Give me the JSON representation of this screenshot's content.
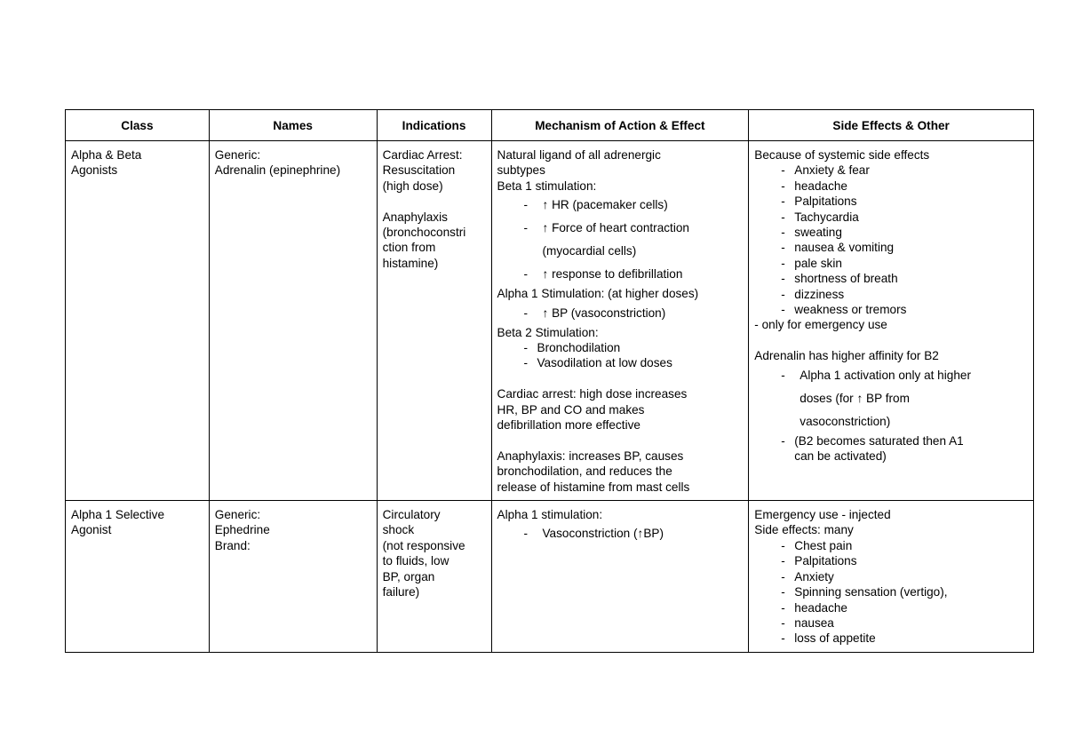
{
  "headers": [
    "Class",
    "Names",
    "Indications",
    "Mechanism of Action & Effect",
    "Side Effects & Other"
  ],
  "rows": [
    [
      [
        {
          "k": "t",
          "v": "Alpha & Beta"
        },
        {
          "k": "t",
          "v": "Agonists"
        }
      ],
      [
        {
          "k": "t",
          "v": "Generic:"
        },
        {
          "k": "t",
          "v": "Adrenalin (epinephrine)"
        }
      ],
      [
        {
          "k": "t",
          "v": "Cardiac Arrest:"
        },
        {
          "k": "t",
          "v": "Resuscitation"
        },
        {
          "k": "t",
          "v": "(high dose)"
        },
        {
          "k": "blank",
          "v": ""
        },
        {
          "k": "t",
          "v": "Anaphylaxis"
        },
        {
          "k": "t",
          "v": "(bronchoconstri"
        },
        {
          "k": "t",
          "v": "ction from"
        },
        {
          "k": "t",
          "v": "histamine)"
        }
      ],
      [
        {
          "k": "t",
          "v": "Natural ligand of all adrenergic"
        },
        {
          "k": "t",
          "v": "subtypes"
        },
        {
          "k": "t",
          "v": "Beta 1 stimulation:"
        },
        {
          "k": "bw",
          "v": "↑ HR (pacemaker cells)"
        },
        {
          "k": "bw",
          "v": "↑ Force of heart contraction"
        },
        {
          "k": "cw",
          "v": "(myocardial cells)"
        },
        {
          "k": "bw",
          "v": "↑ response to defibrillation"
        },
        {
          "k": "t",
          "v": "Alpha 1 Stimulation: (at higher doses)"
        },
        {
          "k": "bw",
          "v": "↑ BP (vasoconstriction)"
        },
        {
          "k": "t",
          "v": "Beta 2 Stimulation:"
        },
        {
          "k": "b",
          "v": "Bronchodilation"
        },
        {
          "k": "b",
          "v": "Vasodilation at low doses"
        },
        {
          "k": "blank",
          "v": ""
        },
        {
          "k": "t",
          "v": "Cardiac arrest: high dose increases"
        },
        {
          "k": "t",
          "v": "HR, BP and CO and makes"
        },
        {
          "k": "t",
          "v": "defibrillation more effective"
        },
        {
          "k": "blank",
          "v": ""
        },
        {
          "k": "t",
          "v": "Anaphylaxis: increases BP, causes"
        },
        {
          "k": "t",
          "v": "bronchodilation, and reduces the"
        },
        {
          "k": "t",
          "v": "release of histamine from mast cells"
        }
      ],
      [
        {
          "k": "t",
          "v": "Because of systemic side effects"
        },
        {
          "k": "b",
          "v": "Anxiety & fear"
        },
        {
          "k": "b",
          "v": "headache"
        },
        {
          "k": "b",
          "v": "Palpitations"
        },
        {
          "k": "b",
          "v": "Tachycardia"
        },
        {
          "k": "b",
          "v": "sweating"
        },
        {
          "k": "b",
          "v": "nausea & vomiting"
        },
        {
          "k": "b",
          "v": "pale skin"
        },
        {
          "k": "b",
          "v": "shortness of breath"
        },
        {
          "k": "b",
          "v": "dizziness"
        },
        {
          "k": "b",
          "v": "weakness or tremors"
        },
        {
          "k": "t",
          "v": "- only for emergency use"
        },
        {
          "k": "blank",
          "v": ""
        },
        {
          "k": "t",
          "v": "Adrenalin has higher affinity for B2"
        },
        {
          "k": "bw",
          "v": "Alpha 1 activation only at higher"
        },
        {
          "k": "cw",
          "v": "doses (for ↑ BP from"
        },
        {
          "k": "cw",
          "v": "vasoconstriction)"
        },
        {
          "k": "b",
          "v": "(B2  becomes saturated then A1"
        },
        {
          "k": "c",
          "v": "can be activated)"
        }
      ]
    ],
    [
      [
        {
          "k": "t",
          "v": "Alpha 1 Selective"
        },
        {
          "k": "t",
          "v": "Agonist"
        }
      ],
      [
        {
          "k": "t",
          "v": "Generic:"
        },
        {
          "k": "t",
          "v": "Ephedrine"
        },
        {
          "k": "t",
          "v": "Brand:"
        }
      ],
      [
        {
          "k": "t",
          "v": "Circulatory"
        },
        {
          "k": "t",
          "v": "shock"
        },
        {
          "k": "t",
          "v": "(not responsive"
        },
        {
          "k": "t",
          "v": "to fluids, low"
        },
        {
          "k": "t",
          "v": "BP, organ"
        },
        {
          "k": "t",
          "v": "failure)"
        }
      ],
      [
        {
          "k": "t",
          "v": "Alpha 1 stimulation:"
        },
        {
          "k": "bw",
          "v": "Vasoconstriction (↑BP)"
        }
      ],
      [
        {
          "k": "t",
          "v": "Emergency use - injected"
        },
        {
          "k": "t",
          "v": "Side effects: many"
        },
        {
          "k": "b",
          "v": "Chest pain"
        },
        {
          "k": "b",
          "v": "Palpitations"
        },
        {
          "k": "b",
          "v": "Anxiety"
        },
        {
          "k": "b",
          "v": "Spinning sensation (vertigo),"
        },
        {
          "k": "b",
          "v": "headache"
        },
        {
          "k": "b",
          "v": "nausea"
        },
        {
          "k": "b",
          "v": "loss of appetite"
        }
      ]
    ]
  ]
}
